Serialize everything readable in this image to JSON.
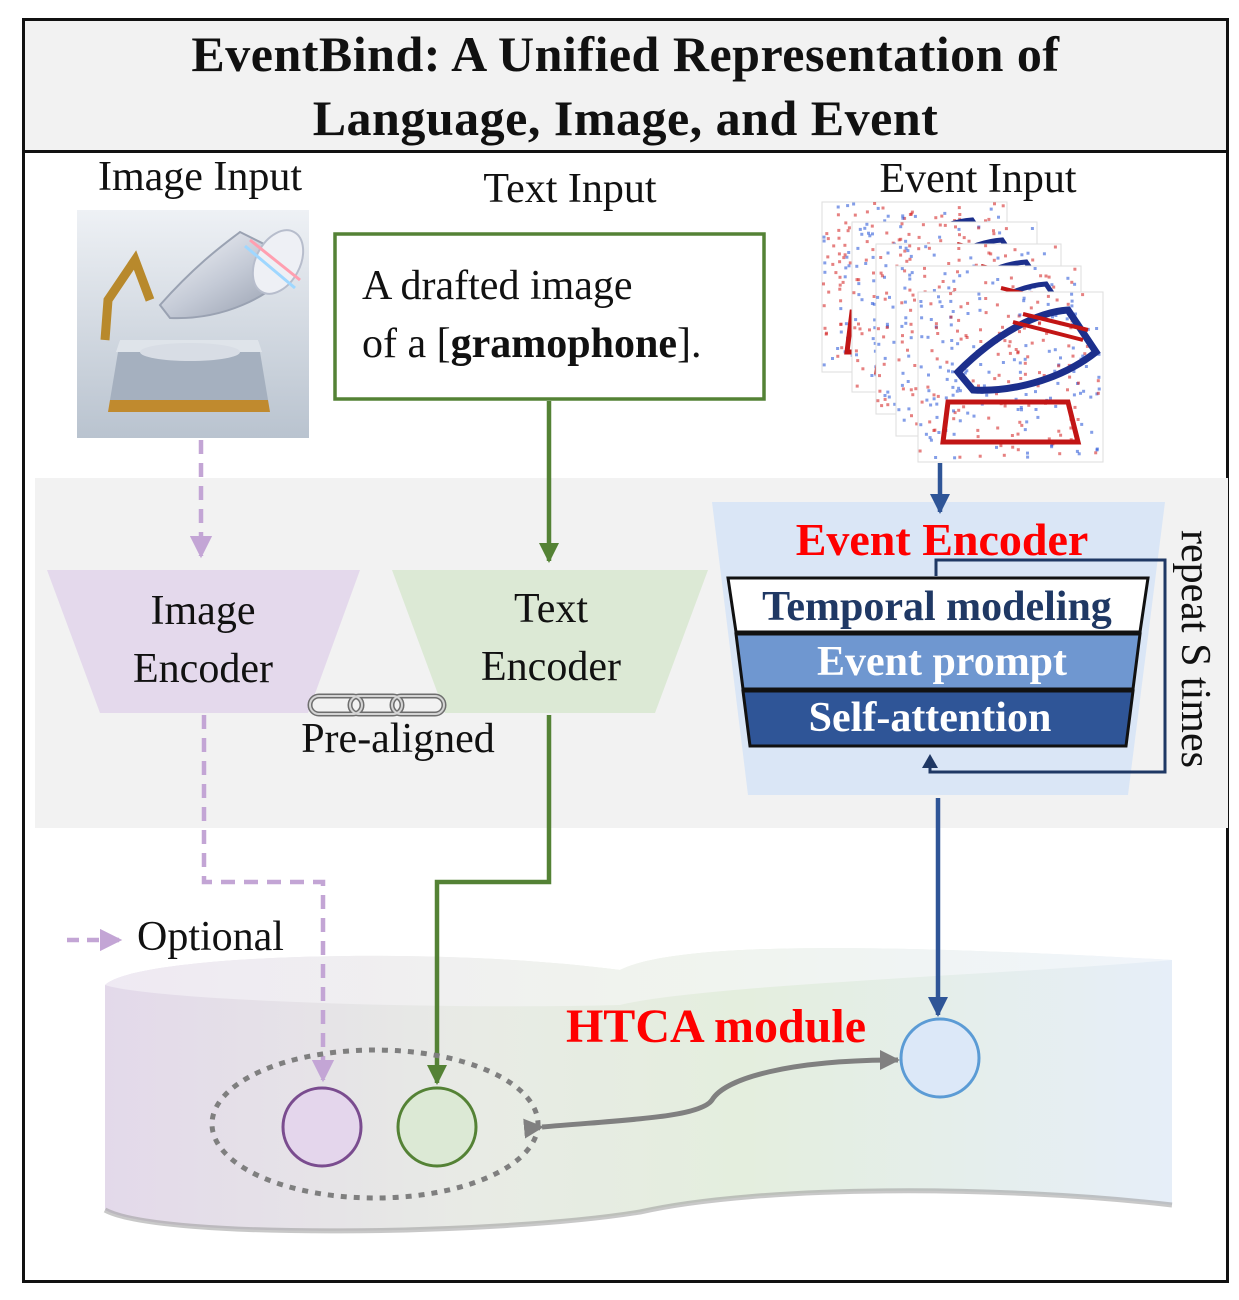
{
  "title": {
    "line1": "EventBind: A Unified Representation of",
    "line2": "Language, Image, and Event"
  },
  "inputs": {
    "image_label": "Image Input",
    "text_label": "Text Input",
    "event_label": "Event Input",
    "text_prompt_line1": "A drafted image",
    "text_prompt_prefix": "of a [",
    "text_prompt_class": "gramophone",
    "text_prompt_suffix": "]."
  },
  "encoders": {
    "image_encoder_line1": "Image",
    "image_encoder_line2": "Encoder",
    "text_encoder_line1": "Text",
    "text_encoder_line2": "Encoder",
    "pre_aligned": "Pre-aligned",
    "event_encoder_title": "Event Encoder",
    "layers": [
      "Temporal modeling",
      "Event prompt",
      "Self-attention"
    ],
    "repeat": "repeat S times"
  },
  "legend": {
    "optional": "Optional"
  },
  "htca": {
    "label": "HTCA module"
  },
  "colors": {
    "image": "#b89ac8",
    "text": "#548235",
    "event": "#2f5597",
    "highlight": "#ff0000"
  },
  "icons": [
    "gramophone-image",
    "event-frames",
    "chain-link-icon"
  ]
}
